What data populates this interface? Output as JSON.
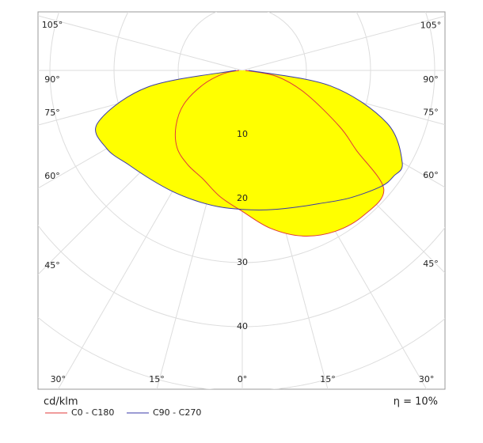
{
  "chart_data": {
    "type": "polar",
    "x": [
      -90,
      -80,
      -70,
      -60,
      -50,
      -40,
      -30,
      -20,
      -10,
      0,
      10,
      20,
      30,
      40,
      50,
      55,
      60,
      70,
      80,
      90
    ],
    "series": [
      {
        "name": "C0 - C180",
        "color": "#e03a3a",
        "values": [
          0.5,
          3,
          6.5,
          10.5,
          13.5,
          15.8,
          17,
          18,
          20,
          22,
          25,
          27.5,
          29,
          29.5,
          28.8,
          21.7,
          17.5,
          10.5,
          5.5,
          0.5
        ]
      },
      {
        "name": "C90 - C270",
        "color": "#3a3aa8",
        "values": [
          1,
          15,
          24,
          24.4,
          23,
          22.2,
          21.8,
          21.6,
          21.6,
          21.7,
          22.1,
          22.8,
          24,
          26,
          28.2,
          28.8,
          28.8,
          24,
          14,
          1
        ]
      }
    ],
    "fill": "#ffff00",
    "rlim": [
      0,
      50
    ],
    "rticks": [
      10,
      20,
      30,
      40,
      50
    ],
    "xticks": [
      {
        "value": -105,
        "label": "105°"
      },
      {
        "value": -90,
        "label": "90°"
      },
      {
        "value": -75,
        "label": "75°"
      },
      {
        "value": -60,
        "label": "60°"
      },
      {
        "value": -45,
        "label": "45°"
      },
      {
        "value": -30,
        "label": "30°"
      },
      {
        "value": -15,
        "label": "15°"
      },
      {
        "value": 0,
        "label": "0°"
      },
      {
        "value": 15,
        "label": "15°"
      },
      {
        "value": 30,
        "label": "30°"
      },
      {
        "value": 45,
        "label": "45°"
      },
      {
        "value": 60,
        "label": "60°"
      },
      {
        "value": 75,
        "label": "75°"
      },
      {
        "value": 90,
        "label": "90°"
      },
      {
        "value": 105,
        "label": "105°"
      }
    ],
    "unit_label": "cd/klm",
    "annotation": "η = 10%"
  }
}
